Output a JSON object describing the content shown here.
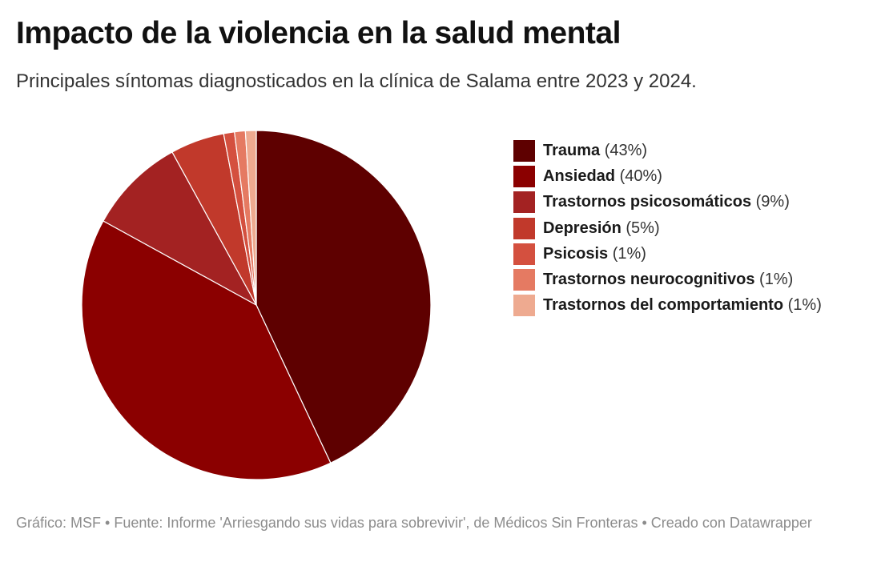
{
  "header": {
    "title": "Impacto de la violencia en la salud mental",
    "subtitle": "Principales síntomas diagnosticados en la clínica de Salama entre 2023 y 2024."
  },
  "chart_data": {
    "type": "pie",
    "title": "Impacto de la violencia en la salud mental",
    "subtitle": "Principales síntomas diagnosticados en la clínica de Salama entre 2023 y 2024.",
    "legend_position": "right",
    "slices": [
      {
        "label": "Trauma",
        "value": 43,
        "display": "(43%)",
        "color": "#5e0000"
      },
      {
        "label": "Ansiedad",
        "value": 40,
        "display": "(40%)",
        "color": "#8b0000"
      },
      {
        "label": "Trastornos psicosomáticos",
        "value": 9,
        "display": "(9%)",
        "color": "#a32222"
      },
      {
        "label": "Depresión",
        "value": 5,
        "display": "(5%)",
        "color": "#c1392b"
      },
      {
        "label": "Psicosis",
        "value": 1,
        "display": "(1%)",
        "color": "#d4503f"
      },
      {
        "label": "Trastornos neurocognitivos",
        "value": 1,
        "display": "(1%)",
        "color": "#e57a62"
      },
      {
        "label": "Trastornos del comportamiento",
        "value": 1,
        "display": "(1%)",
        "color": "#eeaa90"
      }
    ]
  },
  "footer": {
    "text": "Gráfico: MSF • Fuente: Informe 'Arriesgando sus vidas para sobrevivir', de Médicos Sin Fronteras • Creado con Datawrapper"
  }
}
